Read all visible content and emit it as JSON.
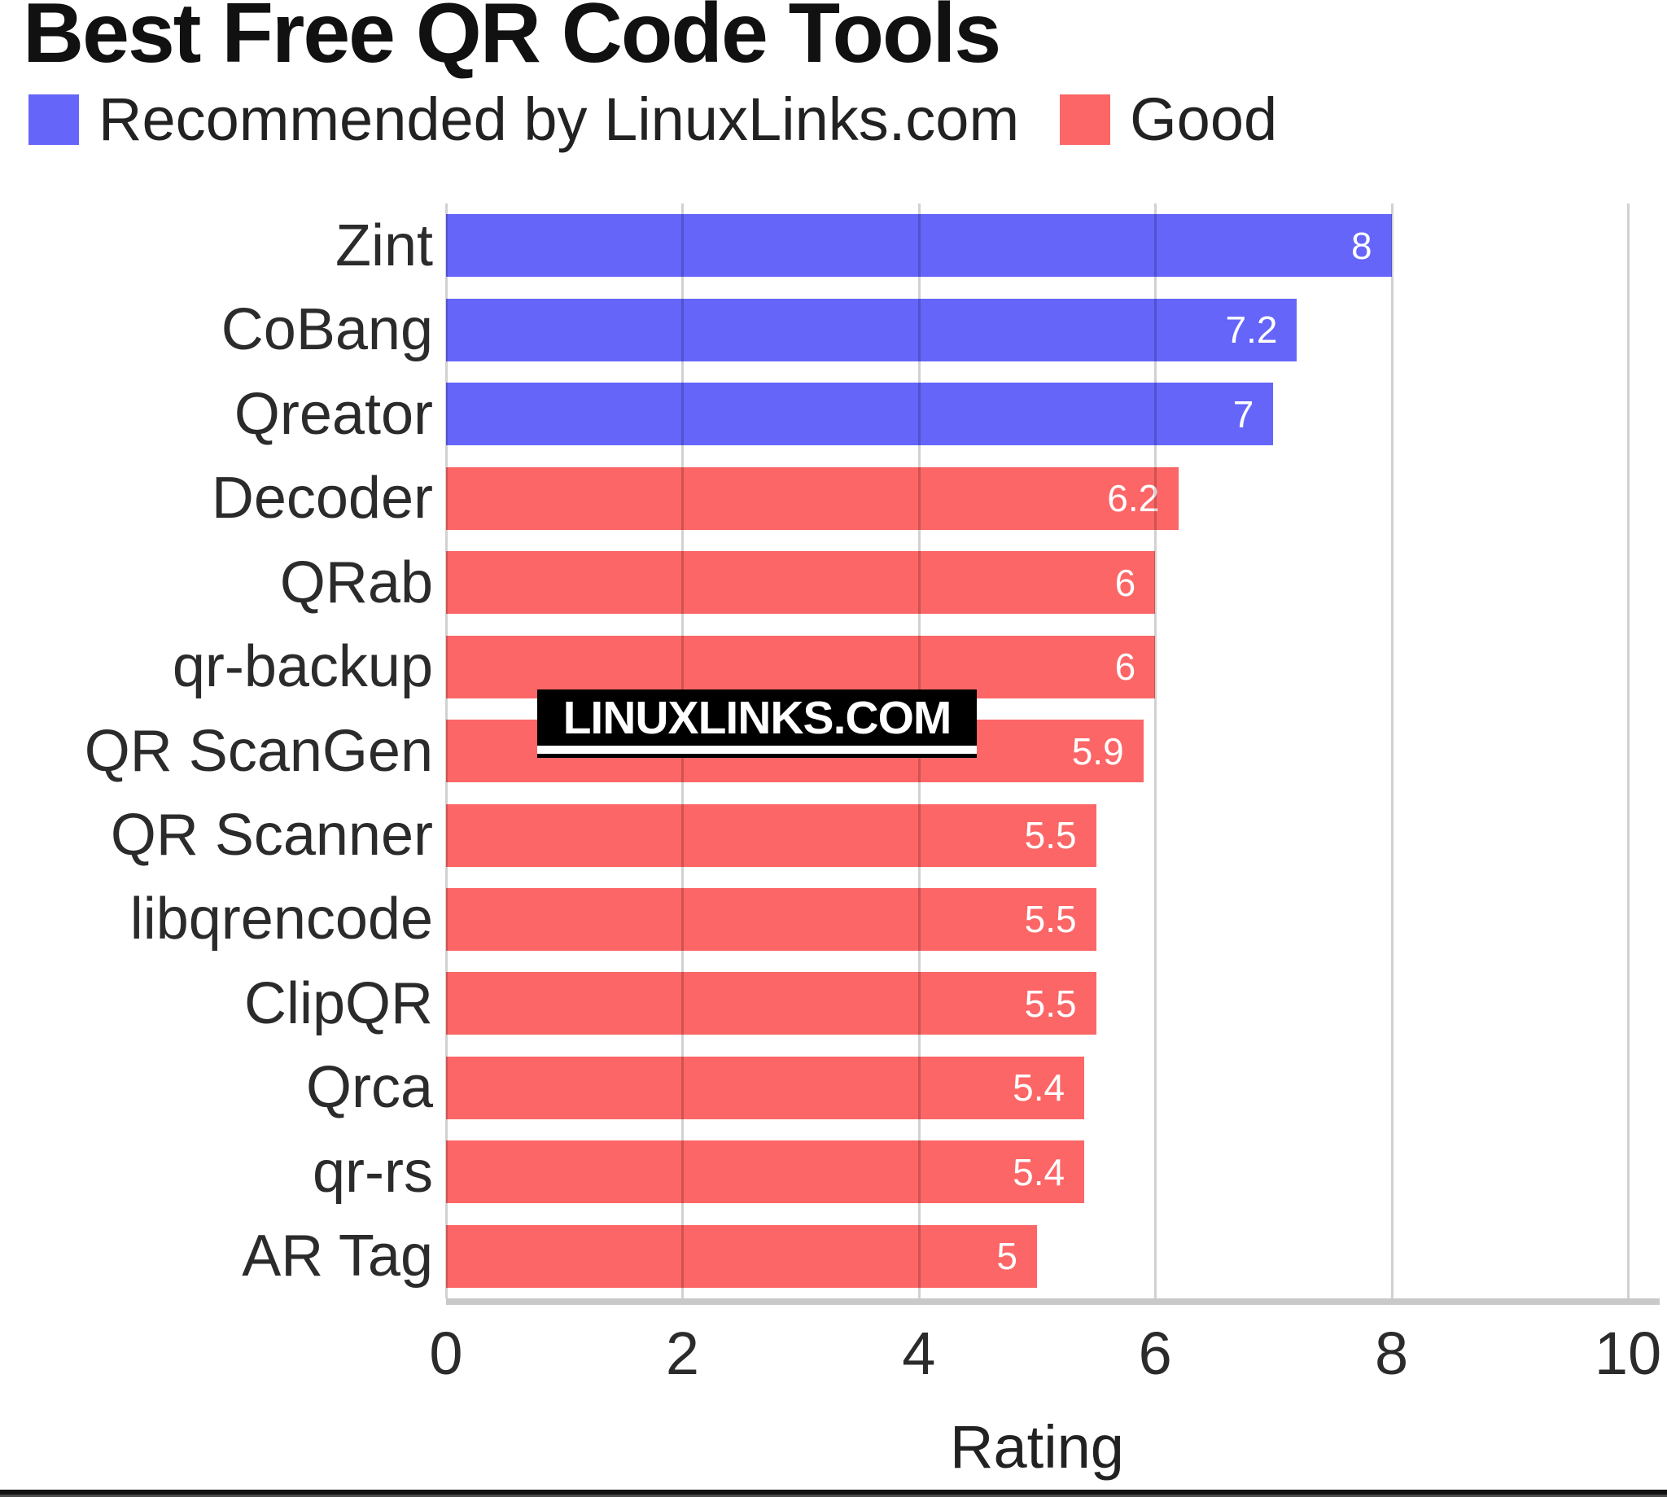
{
  "page": {
    "title": "Best Free QR Code Tools",
    "footer_rule_color": "#111111"
  },
  "colors": {
    "recommended": "#6565FA",
    "good": "#FC6666",
    "grid": "#cccccc",
    "axis_line": "#c9c9c9",
    "value_label": "#ffffff",
    "watermark_bg": "#000000",
    "watermark_fg": "#ffffff"
  },
  "chart_data": {
    "type": "bar",
    "orientation": "horizontal",
    "title": "Best Free QR Code Tools",
    "xlabel": "Rating",
    "ylabel": "",
    "xlim": [
      0,
      10
    ],
    "xticks": [
      0,
      2,
      4,
      6,
      8,
      10
    ],
    "grid": true,
    "legend_position": "top-left",
    "legend": [
      {
        "label": "Recommended by LinuxLinks.com",
        "color": "#6565FA",
        "key": "recommended"
      },
      {
        "label": "Good",
        "color": "#FC6666",
        "key": "good"
      }
    ],
    "categories": [
      "Zint",
      "CoBang",
      "Qreator",
      "Decoder",
      "QRab",
      "qr-backup",
      "QR ScanGen",
      "QR Scanner",
      "libqrencode",
      "ClipQR",
      "Qrca",
      "qr-rs",
      "AR Tag"
    ],
    "values": [
      8,
      7.2,
      7,
      6.2,
      6,
      6,
      5.9,
      5.5,
      5.5,
      5.5,
      5.4,
      5.4,
      5
    ],
    "value_labels": [
      "8",
      "7.2",
      "7",
      "6.2",
      "6",
      "6",
      "5.9",
      "5.5",
      "5.5",
      "5.5",
      "5.4",
      "5.4",
      "5"
    ],
    "groups": [
      "recommended",
      "recommended",
      "recommended",
      "good",
      "good",
      "good",
      "good",
      "good",
      "good",
      "good",
      "good",
      "good",
      "good"
    ],
    "watermark": "LINUXLINKS.COM"
  }
}
